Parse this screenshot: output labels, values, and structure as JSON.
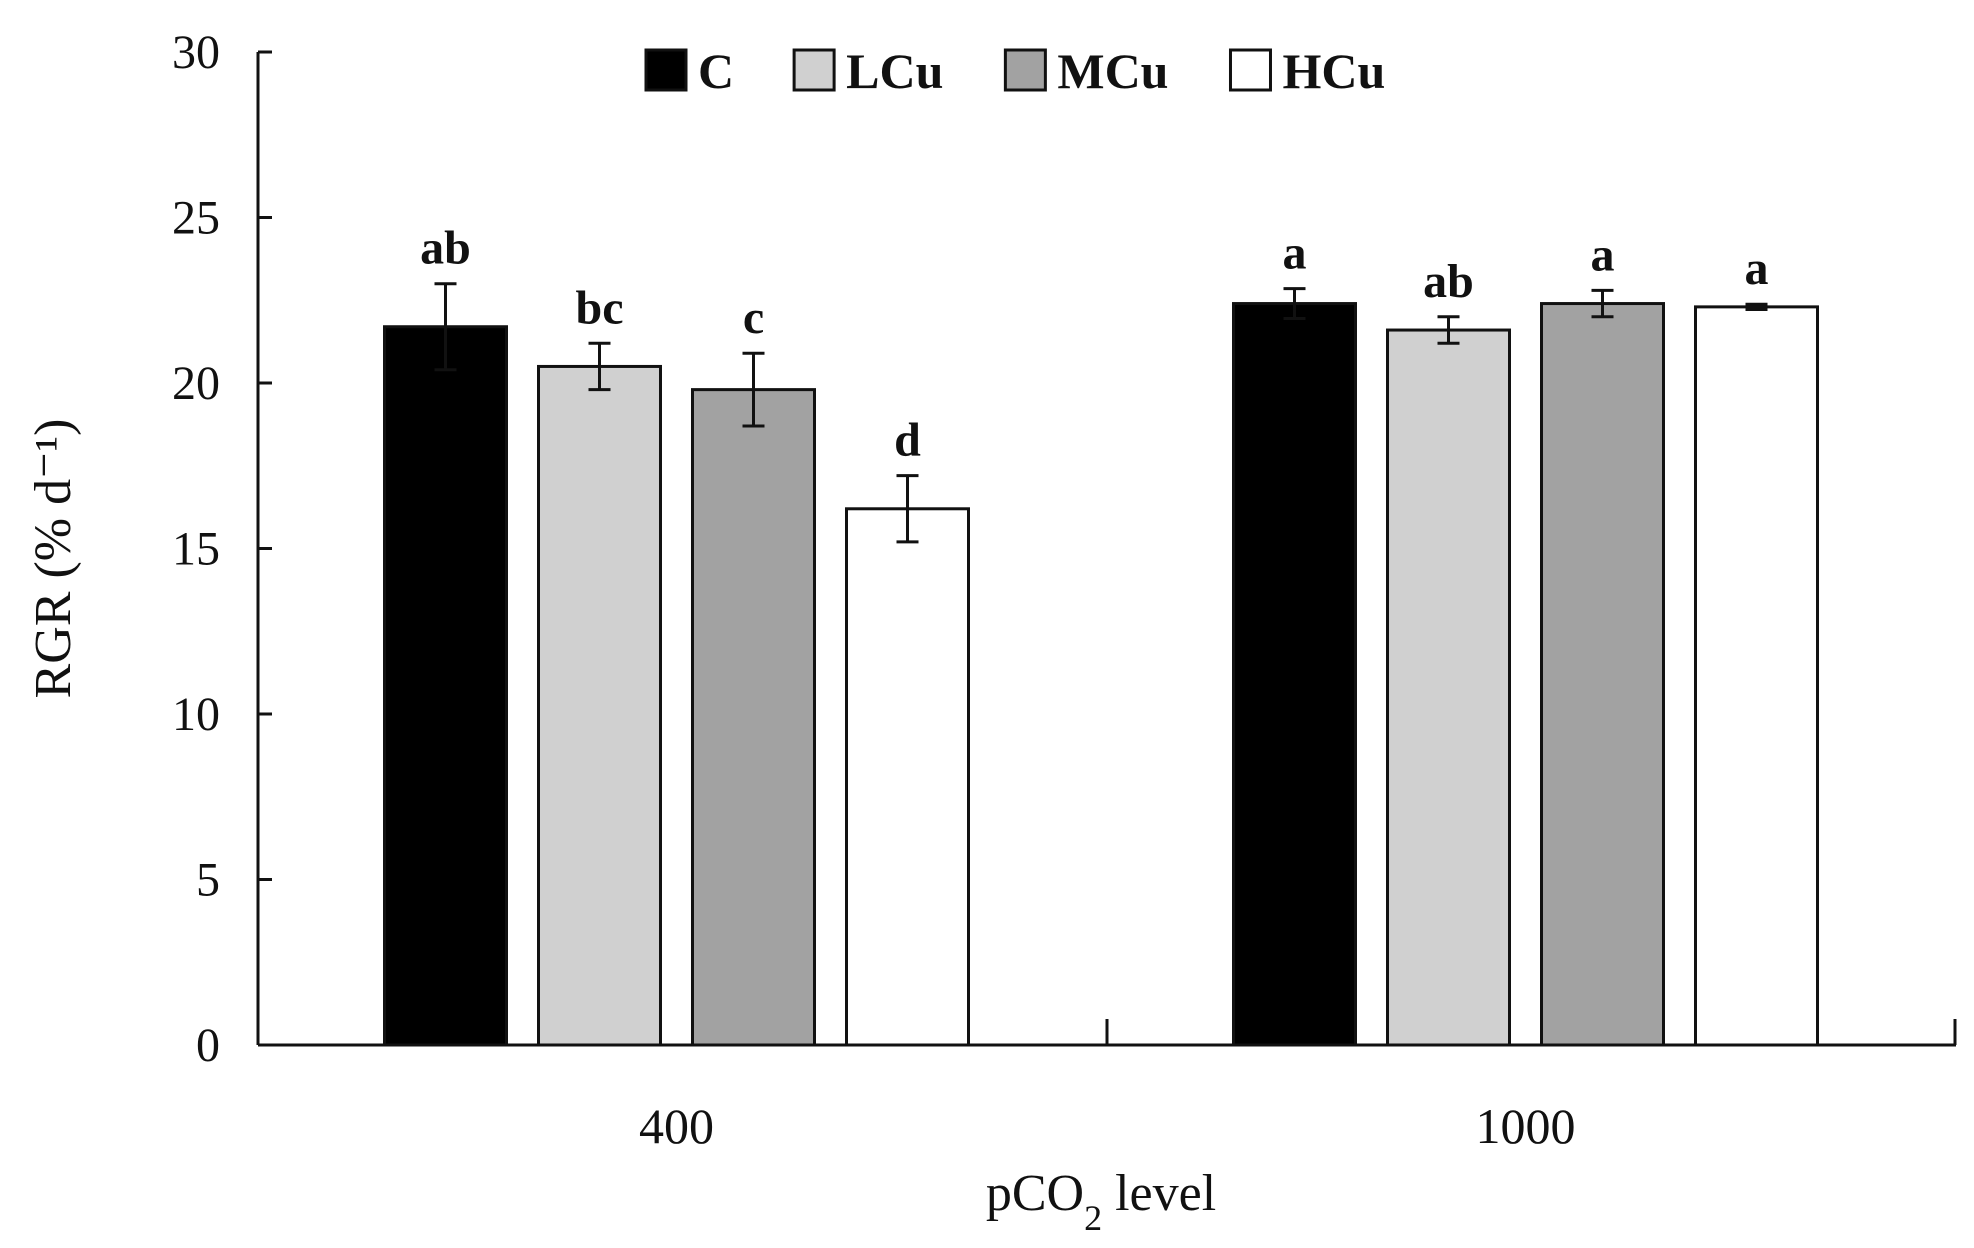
{
  "chart_data": {
    "type": "bar",
    "title": "",
    "xlabel": "pCO2 level",
    "xlabel_parts": {
      "prefix": "pCO",
      "subscript": "2",
      "suffix": " level"
    },
    "ylabel": "RGR (% d⁻¹)",
    "ylim": [
      0,
      30
    ],
    "yticks": [
      0,
      5,
      10,
      15,
      20,
      25,
      30
    ],
    "categories": [
      "400",
      "1000"
    ],
    "legend_position": "top",
    "grid": false,
    "series": [
      {
        "name": "C",
        "color": "#000000",
        "values": [
          21.7,
          22.4
        ],
        "errors": [
          1.3,
          0.45
        ],
        "letters": [
          "ab",
          "a"
        ]
      },
      {
        "name": "LCu",
        "color": "#d0d0d0",
        "values": [
          20.5,
          21.6
        ],
        "errors": [
          0.7,
          0.4
        ],
        "letters": [
          "bc",
          "ab"
        ]
      },
      {
        "name": "MCu",
        "color": "#a2a2a2",
        "values": [
          19.8,
          22.4
        ],
        "errors": [
          1.1,
          0.4
        ],
        "letters": [
          "c",
          "a"
        ]
      },
      {
        "name": "HCu",
        "color": "#ffffff",
        "values": [
          16.2,
          22.3
        ],
        "errors": [
          1.0,
          0.08
        ],
        "letters": [
          "d",
          "a"
        ]
      }
    ]
  }
}
